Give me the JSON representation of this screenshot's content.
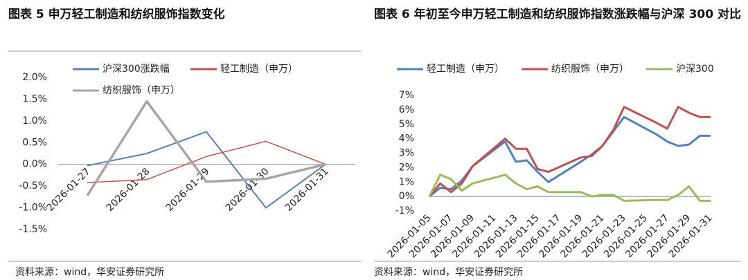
{
  "chart_data": [
    {
      "type": "line",
      "title": "图表 5 申万轻工制造和纺织服饰指数变化",
      "categories": [
        "2026-01-27",
        "2026-01-28",
        "2026-01-29",
        "2026-01-30",
        "2026-01-31"
      ],
      "series": [
        {
          "name": "沪深300涨跌幅",
          "color": "#5b7fb8",
          "values": [
            -0.03,
            0.25,
            0.75,
            -1.0,
            0.0
          ]
        },
        {
          "name": "轻工制造（申万）",
          "color": "#c0504d",
          "values": [
            -0.42,
            -0.35,
            0.18,
            0.53,
            0.0
          ]
        },
        {
          "name": "纺织服饰（申万）",
          "color": "#a6a6a6",
          "values": [
            -0.72,
            1.45,
            -0.4,
            -0.33,
            0.0
          ]
        }
      ],
      "ylim": [
        -1.5,
        2.0
      ],
      "yticks": [
        {
          "value": -1.5,
          "label": "-1.5%"
        },
        {
          "value": -1.0,
          "label": "-1.0%"
        },
        {
          "value": -0.5,
          "label": "-0.5%"
        },
        {
          "value": 0.0,
          "label": "0.0%"
        },
        {
          "value": 0.5,
          "label": "0.5%"
        },
        {
          "value": 1.0,
          "label": "1.0%"
        },
        {
          "value": 1.5,
          "label": "1.5%"
        },
        {
          "value": 2.0,
          "label": "2.0%"
        }
      ],
      "grid": false,
      "source": "资料来源：wind，华安证券研究所"
    },
    {
      "type": "line",
      "title": "图表 6 年初至今申万轻工制造和纺织服饰指数涨跌幅与沪深 300 对比",
      "x": [
        "2026-01-05",
        "2026-01-06",
        "2026-01-07",
        "2026-01-08",
        "2026-01-09",
        "2026-01-12",
        "2026-01-13",
        "2026-01-14",
        "2026-01-15",
        "2026-01-16",
        "2026-01-19",
        "2026-01-20",
        "2026-01-21",
        "2026-01-22",
        "2026-01-23",
        "2026-01-26",
        "2026-01-27",
        "2026-01-28",
        "2026-01-29",
        "2026-01-30",
        "2026-01-31"
      ],
      "series": [
        {
          "name": "轻工制造（申万）",
          "color": "#4f81bd",
          "values": [
            0,
            0.6,
            0.5,
            1.1,
            2.1,
            3.8,
            2.4,
            2.5,
            1.7,
            1.0,
            2.4,
            2.9,
            3.5,
            4.5,
            5.5,
            4.3,
            3.8,
            3.5,
            3.6,
            4.2,
            4.2
          ]
        },
        {
          "name": "纺织服饰（申万）",
          "color": "#c0504d",
          "values": [
            0,
            0.9,
            0.3,
            0.9,
            2.1,
            4.0,
            3.3,
            3.3,
            1.9,
            1.7,
            2.7,
            2.8,
            3.5,
            4.6,
            6.2,
            5.1,
            4.7,
            6.2,
            5.8,
            5.5,
            5.5
          ]
        },
        {
          "name": "沪深300",
          "color": "#9bbb59",
          "values": [
            0,
            1.5,
            1.2,
            0.4,
            0.9,
            1.5,
            0.9,
            0.5,
            0.7,
            0.3,
            0.3,
            0.0,
            0.1,
            0.1,
            -0.3,
            -0.25,
            -0.25,
            0.1,
            0.7,
            -0.3,
            -0.3
          ]
        }
      ],
      "xlim": [
        "2026-01-05",
        "2026-01-31"
      ],
      "xticks": [
        "2026-01-05",
        "2026-01-07",
        "2026-01-09",
        "2026-01-11",
        "2026-01-13",
        "2026-01-15",
        "2026-01-17",
        "2026-01-19",
        "2026-01-21",
        "2026-01-23",
        "2026-01-25",
        "2026-01-27",
        "2026-01-29",
        "2026-01-31"
      ],
      "ylim": [
        -1,
        7
      ],
      "yticks": [
        {
          "value": -1,
          "label": "-1%"
        },
        {
          "value": 0,
          "label": "0%"
        },
        {
          "value": 1,
          "label": "1%"
        },
        {
          "value": 2,
          "label": "2%"
        },
        {
          "value": 3,
          "label": "3%"
        },
        {
          "value": 4,
          "label": "4%"
        },
        {
          "value": 5,
          "label": "5%"
        },
        {
          "value": 6,
          "label": "6%"
        },
        {
          "value": 7,
          "label": "7%"
        }
      ],
      "grid": false,
      "source": "资料来源：wind，华安证券研究所"
    }
  ]
}
